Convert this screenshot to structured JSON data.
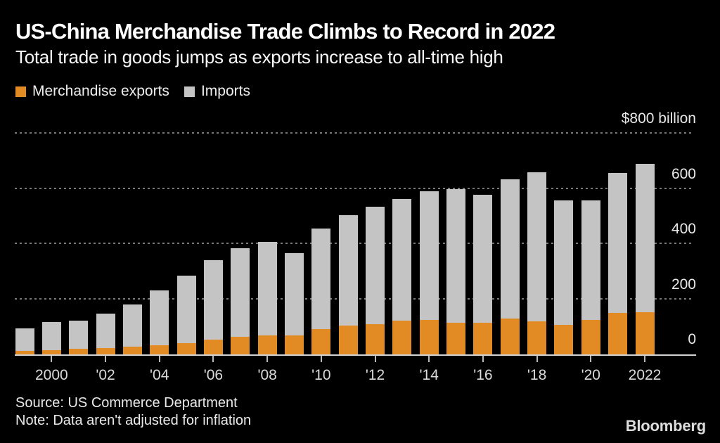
{
  "header": {
    "title": "US-China Merchandise Trade Climbs to Record in 2022",
    "subtitle": "Total trade in goods jumps as exports increase to all-time high"
  },
  "legend": [
    {
      "label": "Merchandise exports",
      "color": "#E28B25"
    },
    {
      "label": "Imports",
      "color": "#C4C4C4"
    }
  ],
  "chart_data": {
    "type": "bar",
    "stacked": true,
    "title": "US-China Merchandise Trade Climbs to Record in 2022",
    "subtitle": "Total trade in goods jumps as exports increase to all-time high",
    "unit_axis_label": "$800 billion",
    "categories": [
      1999,
      2000,
      2001,
      2002,
      2003,
      2004,
      2005,
      2006,
      2007,
      2008,
      2009,
      2010,
      2011,
      2012,
      2013,
      2014,
      2015,
      2016,
      2017,
      2018,
      2019,
      2020,
      2021,
      2022
    ],
    "series": [
      {
        "name": "Merchandise exports",
        "color": "#E28B25",
        "values": [
          13.1,
          16.2,
          19.2,
          22.1,
          28.4,
          34.4,
          41.2,
          53.7,
          62.9,
          69.7,
          69.5,
          91.9,
          104.1,
          110.5,
          121.7,
          123.7,
          115.9,
          115.6,
          129.9,
          120.3,
          106.4,
          124.5,
          151.1,
          153.8
        ]
      },
      {
        "name": "Imports",
        "color": "#C4C4C4",
        "values": [
          81.8,
          100.0,
          102.3,
          125.2,
          152.4,
          196.7,
          243.5,
          287.8,
          321.4,
          337.8,
          296.4,
          364.9,
          399.4,
          425.6,
          440.4,
          468.5,
          483.2,
          462.6,
          505.5,
          539.5,
          452.2,
          434.7,
          506.4,
          536.3
        ]
      }
    ],
    "ylim": [
      0,
      800
    ],
    "yticks": [
      0,
      200,
      400,
      600,
      800
    ],
    "ytick_labels": [
      "0",
      "200",
      "400",
      "600",
      "$800 billion"
    ],
    "xticks": [
      {
        "year": 2000,
        "label": "2000"
      },
      {
        "year": 2002,
        "label": "'02"
      },
      {
        "year": 2004,
        "label": "'04"
      },
      {
        "year": 2006,
        "label": "'06"
      },
      {
        "year": 2008,
        "label": "'08"
      },
      {
        "year": 2010,
        "label": "'10"
      },
      {
        "year": 2012,
        "label": "'12"
      },
      {
        "year": 2014,
        "label": "'14"
      },
      {
        "year": 2016,
        "label": "'16"
      },
      {
        "year": 2018,
        "label": "'18"
      },
      {
        "year": 2020,
        "label": "'20"
      },
      {
        "year": 2022,
        "label": "2022"
      }
    ],
    "grid": "horizontal-dotted",
    "legend_position": "top-left",
    "background": "#000000"
  },
  "footer": {
    "source": "Source: US Commerce Department",
    "note": "Note: Data aren't adjusted for inflation",
    "logo": "Bloomberg"
  }
}
